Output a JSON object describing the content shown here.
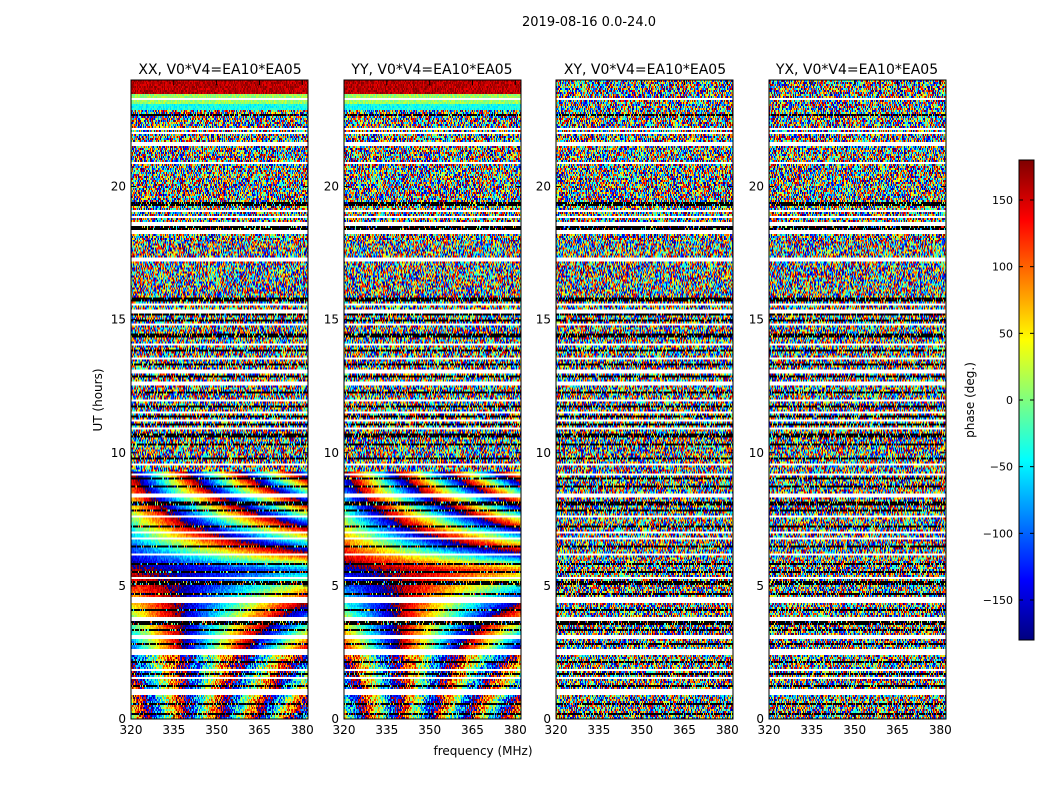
{
  "chart_data": {
    "type": "heatmap",
    "suptitle": "2019-08-16 0.0-24.0",
    "xlabel": "frequency (MHz)",
    "ylabel": "UT (hours)",
    "xlim": [
      320,
      382
    ],
    "ylim": [
      0,
      24
    ],
    "xticks": [
      320,
      335,
      350,
      365,
      380
    ],
    "yticks": [
      0,
      5,
      10,
      15,
      20
    ],
    "panels": [
      {
        "title": "XX, V0*V4=EA10*EA05",
        "kind": "parallel",
        "slope": 1.0,
        "offset": 0.0
      },
      {
        "title": "YY, V0*V4=EA10*EA05",
        "kind": "parallel",
        "slope": -1.05,
        "offset": 40.0
      },
      {
        "title": "XY, V0*V4=EA10*EA05",
        "kind": "cross"
      },
      {
        "title": "YX, V0*V4=EA10*EA05",
        "kind": "cross"
      }
    ],
    "colorbar": {
      "label": "phase (deg.)",
      "min": -180,
      "max": 180,
      "ticks": [
        150,
        100,
        50,
        0,
        -50,
        -100,
        -150
      ],
      "tick_labels": [
        "150",
        "100",
        "50",
        "0",
        "−50",
        "−100",
        "−150"
      ],
      "colormap": [
        "#00007f",
        "#0000ff",
        "#007fff",
        "#00ffff",
        "#7fff7f",
        "#ffff00",
        "#ff7f00",
        "#ff0000",
        "#7f0000"
      ]
    },
    "flagged_hours": [
      0.95,
      1.05,
      1.55,
      1.85,
      2.45,
      2.55,
      3.05,
      3.1,
      3.75,
      4.4,
      4.5,
      5.3,
      6.2,
      6.8,
      7.0,
      7.6,
      8.4,
      9.2,
      9.55,
      10.9,
      11.2,
      11.5,
      11.95,
      12.6,
      13.05,
      13.55,
      14.05,
      14.8,
      15.3,
      15.55,
      17.25,
      18.3,
      18.6,
      18.85,
      19.1,
      20.9,
      21.6,
      22.0,
      22.15,
      23.3
    ],
    "stripe_hours": [
      0.2,
      0.55,
      1.25,
      1.7,
      2.15,
      2.8,
      3.35,
      3.6,
      4.1,
      4.7,
      5.1,
      5.5,
      5.8,
      6.5,
      7.25,
      7.85,
      8.1,
      8.75,
      9.05,
      9.8,
      10.3,
      10.65,
      11.05,
      11.35,
      11.75,
      12.25,
      12.85,
      13.3,
      13.85,
      14.4,
      14.95,
      15.2,
      15.75,
      18.45,
      19.35,
      22.7
    ]
  }
}
